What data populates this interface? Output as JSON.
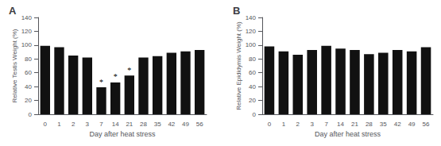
{
  "chart_data": [
    {
      "type": "bar",
      "title": "A",
      "categories": [
        "0",
        "1",
        "2",
        "3",
        "7",
        "14",
        "21",
        "28",
        "35",
        "42",
        "49",
        "56"
      ],
      "values": [
        99,
        97,
        85,
        82,
        39,
        46,
        56,
        82,
        84,
        89,
        91,
        93
      ],
      "color": "#111111",
      "xlabel": "Day after heat stress",
      "ylabel": "Relative Testis Weight (%)",
      "ylim": [
        0,
        140
      ],
      "yticks": [
        0,
        20,
        40,
        60,
        80,
        100,
        120,
        140
      ],
      "grid": false,
      "annotations": [
        {
          "text": "*",
          "category": "7"
        },
        {
          "text": "*",
          "category": "14"
        },
        {
          "text": "*",
          "category": "21"
        }
      ]
    },
    {
      "type": "bar",
      "title": "B",
      "categories": [
        "0",
        "1",
        "2",
        "3",
        "7",
        "14",
        "21",
        "28",
        "35",
        "42",
        "49",
        "56"
      ],
      "values": [
        98,
        91,
        86,
        93,
        99,
        95,
        93,
        87,
        89,
        93,
        91,
        97
      ],
      "color": "#111111",
      "xlabel": "Day after heat stress",
      "ylabel": "Relative Epididymis Weight (%)",
      "ylim": [
        0,
        140
      ],
      "yticks": [
        0,
        20,
        40,
        60,
        80,
        100,
        120,
        140
      ],
      "grid": false
    }
  ]
}
